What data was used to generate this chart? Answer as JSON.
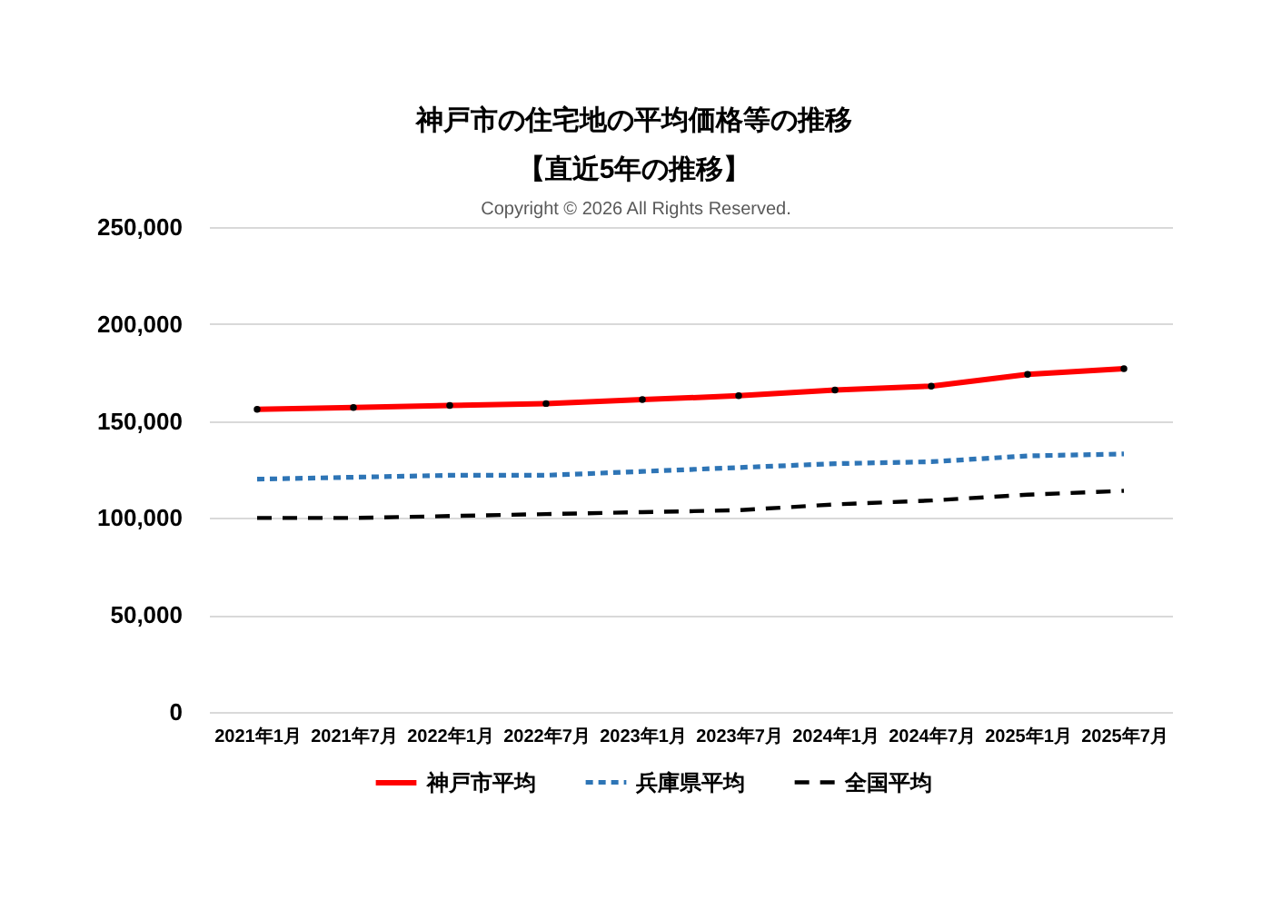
{
  "chart_data": {
    "type": "line",
    "title": "神戸市の住宅地の平均価格等の推移",
    "subtitle": "【直近5年の推移】",
    "annotations": [
      "Copyright © 2026 All Rights Reserved."
    ],
    "categories": [
      "2021年1月",
      "2021年7月",
      "2022年1月",
      "2022年7月",
      "2023年1月",
      "2023年7月",
      "2024年1月",
      "2024年7月",
      "2025年1月",
      "2025年7月"
    ],
    "series": [
      {
        "name": "神戸市平均",
        "color": "#ff0000",
        "marker": "circle",
        "line_style": "solid",
        "values": [
          156000,
          157000,
          158000,
          159000,
          161000,
          163000,
          166000,
          168000,
          174000,
          177000
        ]
      },
      {
        "name": "兵庫県平均",
        "color": "#2e75b6",
        "marker": "none",
        "line_style": "dashed",
        "values": [
          120000,
          121000,
          122000,
          122000,
          124000,
          126000,
          128000,
          129000,
          132000,
          133000
        ]
      },
      {
        "name": "全国平均",
        "color": "#000000",
        "marker": "none",
        "line_style": "dashed",
        "values": [
          100000,
          100000,
          101000,
          102000,
          103000,
          104000,
          107000,
          109000,
          112000,
          114000
        ]
      }
    ],
    "ylim": [
      0,
      250000
    ],
    "yticks": [
      0,
      {
        "value": 50000,
        "label": "50,000"
      },
      {
        "value": 100000,
        "label": "100,000"
      },
      {
        "value": 150000,
        "label": "150,000"
      },
      {
        "value": 200000,
        "label": "200,000"
      },
      {
        "value": 250000,
        "label": "250,000"
      }
    ],
    "grid": "y",
    "legend": "bottom"
  }
}
